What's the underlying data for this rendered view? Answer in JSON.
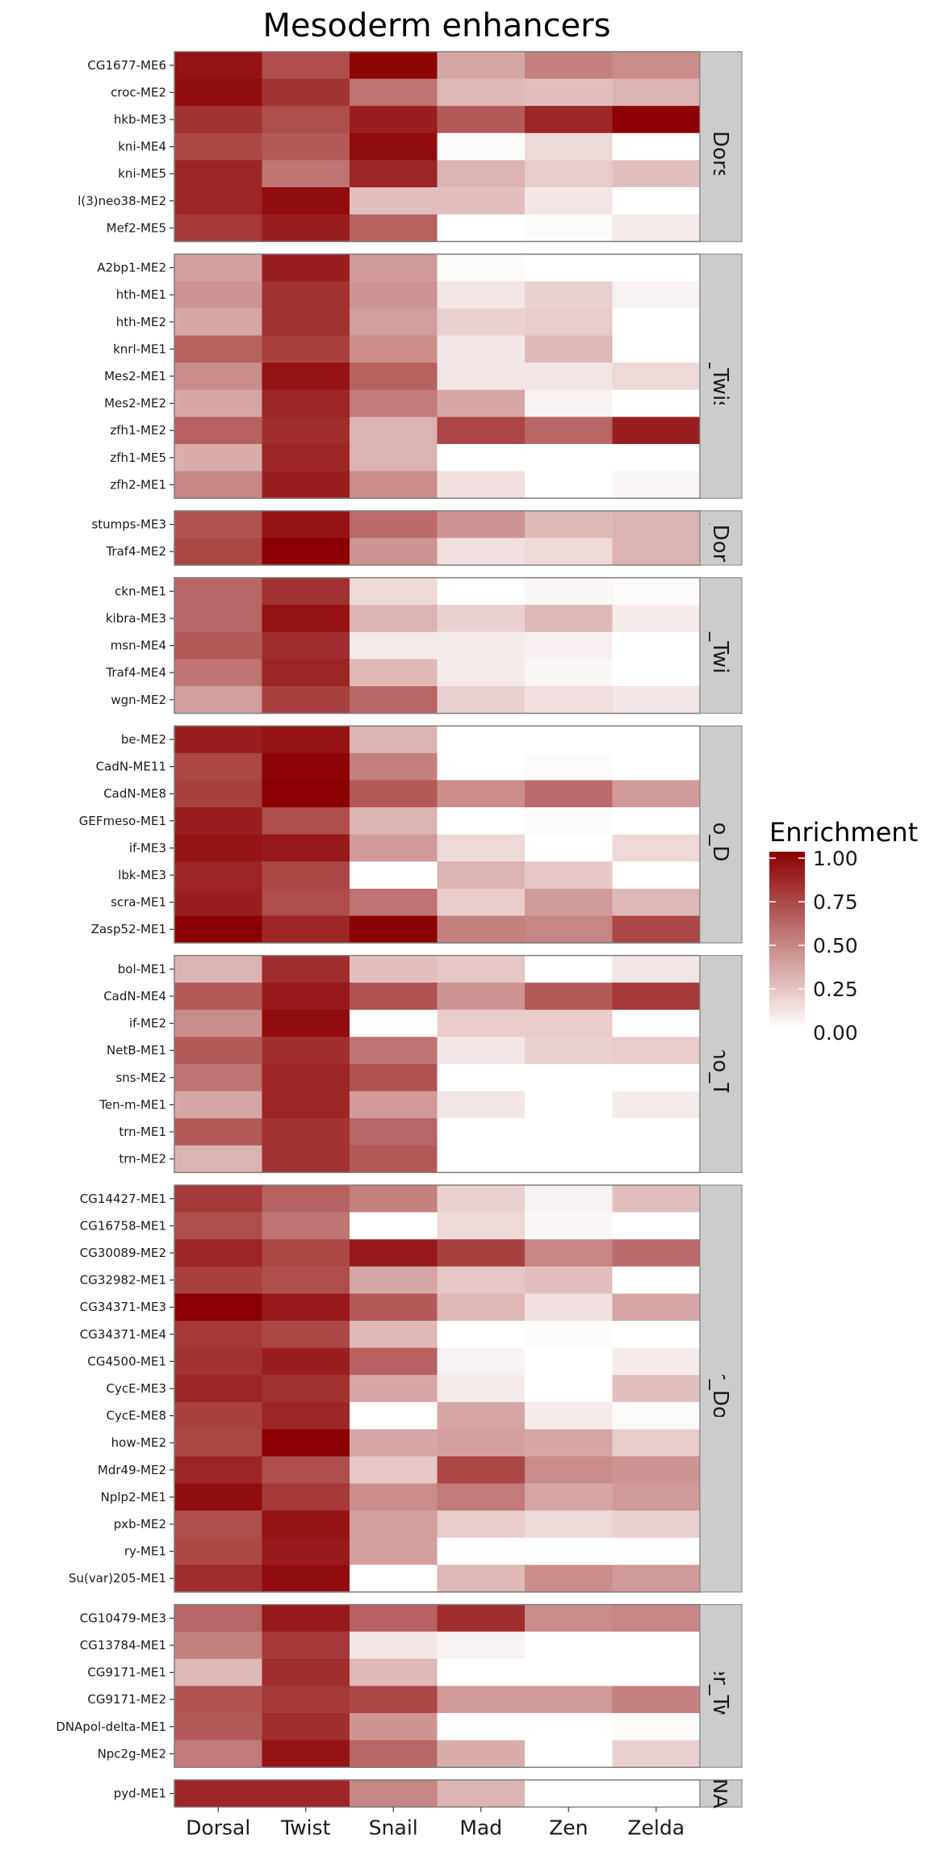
{
  "chart_data": {
    "type": "heatmap",
    "title": "Mesoderm enhancers",
    "xlabel": "",
    "ylabel": "",
    "columns": [
      "Dorsal",
      "Twist",
      "Snail",
      "Mad",
      "Zen",
      "Zelda"
    ],
    "colorscale": {
      "low": "#FFFFFF",
      "high": "#8B0000",
      "range": [
        0,
        1
      ]
    },
    "legend": {
      "title": "Enrichment",
      "position": "right",
      "ticks": [
        "1.00",
        "0.75",
        "0.50",
        "0.25",
        "0.00"
      ]
    },
    "facets": [
      {
        "label": "Tx_Dorsal",
        "strip_text": "Tx_Dorsal",
        "rows": [
          {
            "label": "CG1677-ME6",
            "values": [
              0.93,
              0.7,
              0.98,
              0.35,
              0.5,
              0.45
            ]
          },
          {
            "label": "croc-ME2",
            "values": [
              0.95,
              0.8,
              0.55,
              0.28,
              0.25,
              0.3
            ]
          },
          {
            "label": "hkb-ME3",
            "values": [
              0.8,
              0.7,
              0.88,
              0.65,
              0.85,
              1.0
            ]
          },
          {
            "label": "kni-ME4",
            "values": [
              0.72,
              0.65,
              0.95,
              0.02,
              0.15,
              0.0
            ]
          },
          {
            "label": "kni-ME5",
            "values": [
              0.85,
              0.55,
              0.85,
              0.3,
              0.2,
              0.25
            ]
          },
          {
            "label": "l(3)neo38-ME2",
            "values": [
              0.85,
              0.95,
              0.25,
              0.25,
              0.1,
              0.0
            ]
          },
          {
            "label": "Mef2-ME5",
            "values": [
              0.78,
              0.88,
              0.62,
              0.0,
              0.02,
              0.08
            ]
          }
        ]
      },
      {
        "label": "Tx_Twist",
        "strip_text": "Tx_Twist",
        "rows": [
          {
            "label": "A2bp1-ME2",
            "values": [
              0.38,
              0.88,
              0.4,
              0.02,
              0.0,
              0.0
            ]
          },
          {
            "label": "hth-ME1",
            "values": [
              0.42,
              0.8,
              0.42,
              0.1,
              0.18,
              0.05
            ]
          },
          {
            "label": "hth-ME2",
            "values": [
              0.35,
              0.8,
              0.38,
              0.18,
              0.2,
              0.0
            ]
          },
          {
            "label": "knrl-ME1",
            "values": [
              0.62,
              0.75,
              0.45,
              0.1,
              0.28,
              0.0
            ]
          },
          {
            "label": "Mes2-ME1",
            "values": [
              0.45,
              0.92,
              0.62,
              0.1,
              0.1,
              0.15
            ]
          },
          {
            "label": "Mes2-ME2",
            "values": [
              0.35,
              0.85,
              0.52,
              0.35,
              0.05,
              0.0
            ]
          },
          {
            "label": "zfh1-ME2",
            "values": [
              0.62,
              0.82,
              0.3,
              0.72,
              0.6,
              0.88
            ]
          },
          {
            "label": "zfh1-ME5",
            "values": [
              0.32,
              0.85,
              0.3,
              0.0,
              0.0,
              0.0
            ]
          },
          {
            "label": "zfh2-ME1",
            "values": [
              0.48,
              0.88,
              0.45,
              0.12,
              0.0,
              0.04
            ]
          }
        ]
      },
      {
        "label": "Sig_Dorsal",
        "strip_text": "_Dor",
        "rows": [
          {
            "label": "stumps-ME3",
            "values": [
              0.68,
              0.92,
              0.58,
              0.42,
              0.28,
              0.3
            ]
          },
          {
            "label": "Traf4-ME2",
            "values": [
              0.72,
              1.0,
              0.42,
              0.12,
              0.15,
              0.3
            ]
          }
        ]
      },
      {
        "label": "Sig_Twist",
        "strip_text": "Sig_Twist",
        "rows": [
          {
            "label": "ckn-ME1",
            "values": [
              0.6,
              0.8,
              0.15,
              0.0,
              0.03,
              0.02
            ]
          },
          {
            "label": "kibra-ME3",
            "values": [
              0.6,
              0.92,
              0.3,
              0.18,
              0.28,
              0.08
            ]
          },
          {
            "label": "msn-ME4",
            "values": [
              0.65,
              0.82,
              0.08,
              0.08,
              0.06,
              0.0
            ]
          },
          {
            "label": "Traf4-ME4",
            "values": [
              0.55,
              0.85,
              0.28,
              0.08,
              0.03,
              0.0
            ]
          },
          {
            "label": "wgn-ME2",
            "values": [
              0.38,
              0.75,
              0.6,
              0.18,
              0.12,
              0.1
            ]
          }
        ]
      },
      {
        "label": "Morpho_Dorsal",
        "strip_text": "Morpho_Dorsal",
        "rows": [
          {
            "label": "be-ME2",
            "values": [
              0.88,
              0.92,
              0.3,
              0.0,
              0.0,
              0.0
            ]
          },
          {
            "label": "CadN-ME11",
            "values": [
              0.72,
              0.98,
              0.5,
              0.0,
              0.02,
              0.0
            ]
          },
          {
            "label": "CadN-ME8",
            "values": [
              0.75,
              1.0,
              0.65,
              0.45,
              0.58,
              0.4
            ]
          },
          {
            "label": "GEFmeso-ME1",
            "values": [
              0.88,
              0.7,
              0.3,
              0.0,
              0.02,
              0.0
            ]
          },
          {
            "label": "if-ME3",
            "values": [
              0.92,
              0.9,
              0.4,
              0.15,
              0.0,
              0.15
            ]
          },
          {
            "label": "lbk-ME3",
            "values": [
              0.85,
              0.72,
              0.0,
              0.3,
              0.22,
              0.0
            ]
          },
          {
            "label": "scra-ME1",
            "values": [
              0.88,
              0.7,
              0.55,
              0.2,
              0.4,
              0.28
            ]
          },
          {
            "label": "Zasp52-ME1",
            "values": [
              1.0,
              0.85,
              1.0,
              0.5,
              0.48,
              0.72
            ]
          }
        ]
      },
      {
        "label": "Morpho_Twist",
        "strip_text": "Morpho_Twist",
        "rows": [
          {
            "label": "bol-ME1",
            "values": [
              0.3,
              0.82,
              0.25,
              0.22,
              0.0,
              0.1
            ]
          },
          {
            "label": "CadN-ME4",
            "values": [
              0.65,
              0.9,
              0.68,
              0.42,
              0.65,
              0.78
            ]
          },
          {
            "label": "if-ME2",
            "values": [
              0.45,
              0.95,
              0.0,
              0.2,
              0.2,
              0.0
            ]
          },
          {
            "label": "NetB-ME1",
            "values": [
              0.65,
              0.82,
              0.55,
              0.1,
              0.18,
              0.2
            ]
          },
          {
            "label": "sns-ME2",
            "values": [
              0.55,
              0.85,
              0.68,
              0.0,
              0.0,
              0.0
            ]
          },
          {
            "label": "Ten-m-ME1",
            "values": [
              0.35,
              0.85,
              0.4,
              0.1,
              0.0,
              0.08
            ]
          },
          {
            "label": "trn-ME1",
            "values": [
              0.65,
              0.8,
              0.6,
              0.0,
              0.0,
              0.0
            ]
          },
          {
            "label": "trn-ME2",
            "values": [
              0.3,
              0.8,
              0.65,
              0.0,
              0.0,
              0.0
            ]
          }
        ]
      },
      {
        "label": "Other_Dorsal",
        "strip_text": "Other_Dorsal",
        "rows": [
          {
            "label": "CG14427-ME1",
            "values": [
              0.78,
              0.62,
              0.5,
              0.18,
              0.05,
              0.25
            ]
          },
          {
            "label": "CG16758-ME1",
            "values": [
              0.7,
              0.55,
              0.0,
              0.15,
              0.03,
              0.0
            ]
          },
          {
            "label": "CG30089-ME2",
            "values": [
              0.85,
              0.72,
              0.9,
              0.75,
              0.48,
              0.58
            ]
          },
          {
            "label": "CG32982-ME1",
            "values": [
              0.75,
              0.7,
              0.35,
              0.22,
              0.25,
              0.0
            ]
          },
          {
            "label": "CG34371-ME3",
            "values": [
              1.0,
              0.9,
              0.65,
              0.28,
              0.12,
              0.35
            ]
          },
          {
            "label": "CG34371-ME4",
            "values": [
              0.78,
              0.72,
              0.28,
              0.0,
              0.02,
              0.0
            ]
          },
          {
            "label": "CG4500-ME1",
            "values": [
              0.8,
              0.88,
              0.62,
              0.05,
              0.0,
              0.08
            ]
          },
          {
            "label": "CycE-ME3",
            "values": [
              0.85,
              0.8,
              0.35,
              0.08,
              0.0,
              0.25
            ]
          },
          {
            "label": "CycE-ME8",
            "values": [
              0.75,
              0.85,
              0.0,
              0.35,
              0.08,
              0.02
            ]
          },
          {
            "label": "how-ME2",
            "values": [
              0.72,
              1.0,
              0.35,
              0.38,
              0.35,
              0.2
            ]
          },
          {
            "label": "Mdr49-ME2",
            "values": [
              0.85,
              0.7,
              0.22,
              0.72,
              0.45,
              0.42
            ]
          },
          {
            "label": "Nplp2-ME1",
            "values": [
              0.95,
              0.78,
              0.45,
              0.52,
              0.35,
              0.4
            ]
          },
          {
            "label": "pxb-ME2",
            "values": [
              0.7,
              0.92,
              0.38,
              0.2,
              0.15,
              0.18
            ]
          },
          {
            "label": "ry-ME1",
            "values": [
              0.72,
              0.9,
              0.38,
              0.0,
              0.0,
              0.0
            ]
          },
          {
            "label": "Su(var)205-ME1",
            "values": [
              0.82,
              0.95,
              0.0,
              0.28,
              0.45,
              0.4
            ]
          }
        ]
      },
      {
        "label": "Other_Twist",
        "strip_text": "Other_Twist",
        "rows": [
          {
            "label": "CG10479-ME3",
            "values": [
              0.6,
              0.9,
              0.62,
              0.82,
              0.45,
              0.48
            ]
          },
          {
            "label": "CG13784-ME1",
            "values": [
              0.5,
              0.78,
              0.1,
              0.05,
              0.0,
              0.0
            ]
          },
          {
            "label": "CG9171-ME1",
            "values": [
              0.28,
              0.82,
              0.28,
              0.0,
              0.0,
              0.0
            ]
          },
          {
            "label": "CG9171-ME2",
            "values": [
              0.68,
              0.78,
              0.72,
              0.4,
              0.4,
              0.5
            ]
          },
          {
            "label": "DNApol-delta-ME1",
            "values": [
              0.65,
              0.82,
              0.42,
              0.0,
              0.0,
              0.02
            ]
          },
          {
            "label": "Npc2g-ME2",
            "values": [
              0.52,
              0.92,
              0.6,
              0.32,
              0.0,
              0.18
            ]
          }
        ]
      },
      {
        "label": "NA",
        "strip_text": "NA",
        "rows": [
          {
            "label": "pyd-ME1",
            "values": [
              0.85,
              0.85,
              0.48,
              0.3,
              0.0,
              0.0
            ]
          }
        ]
      }
    ]
  }
}
